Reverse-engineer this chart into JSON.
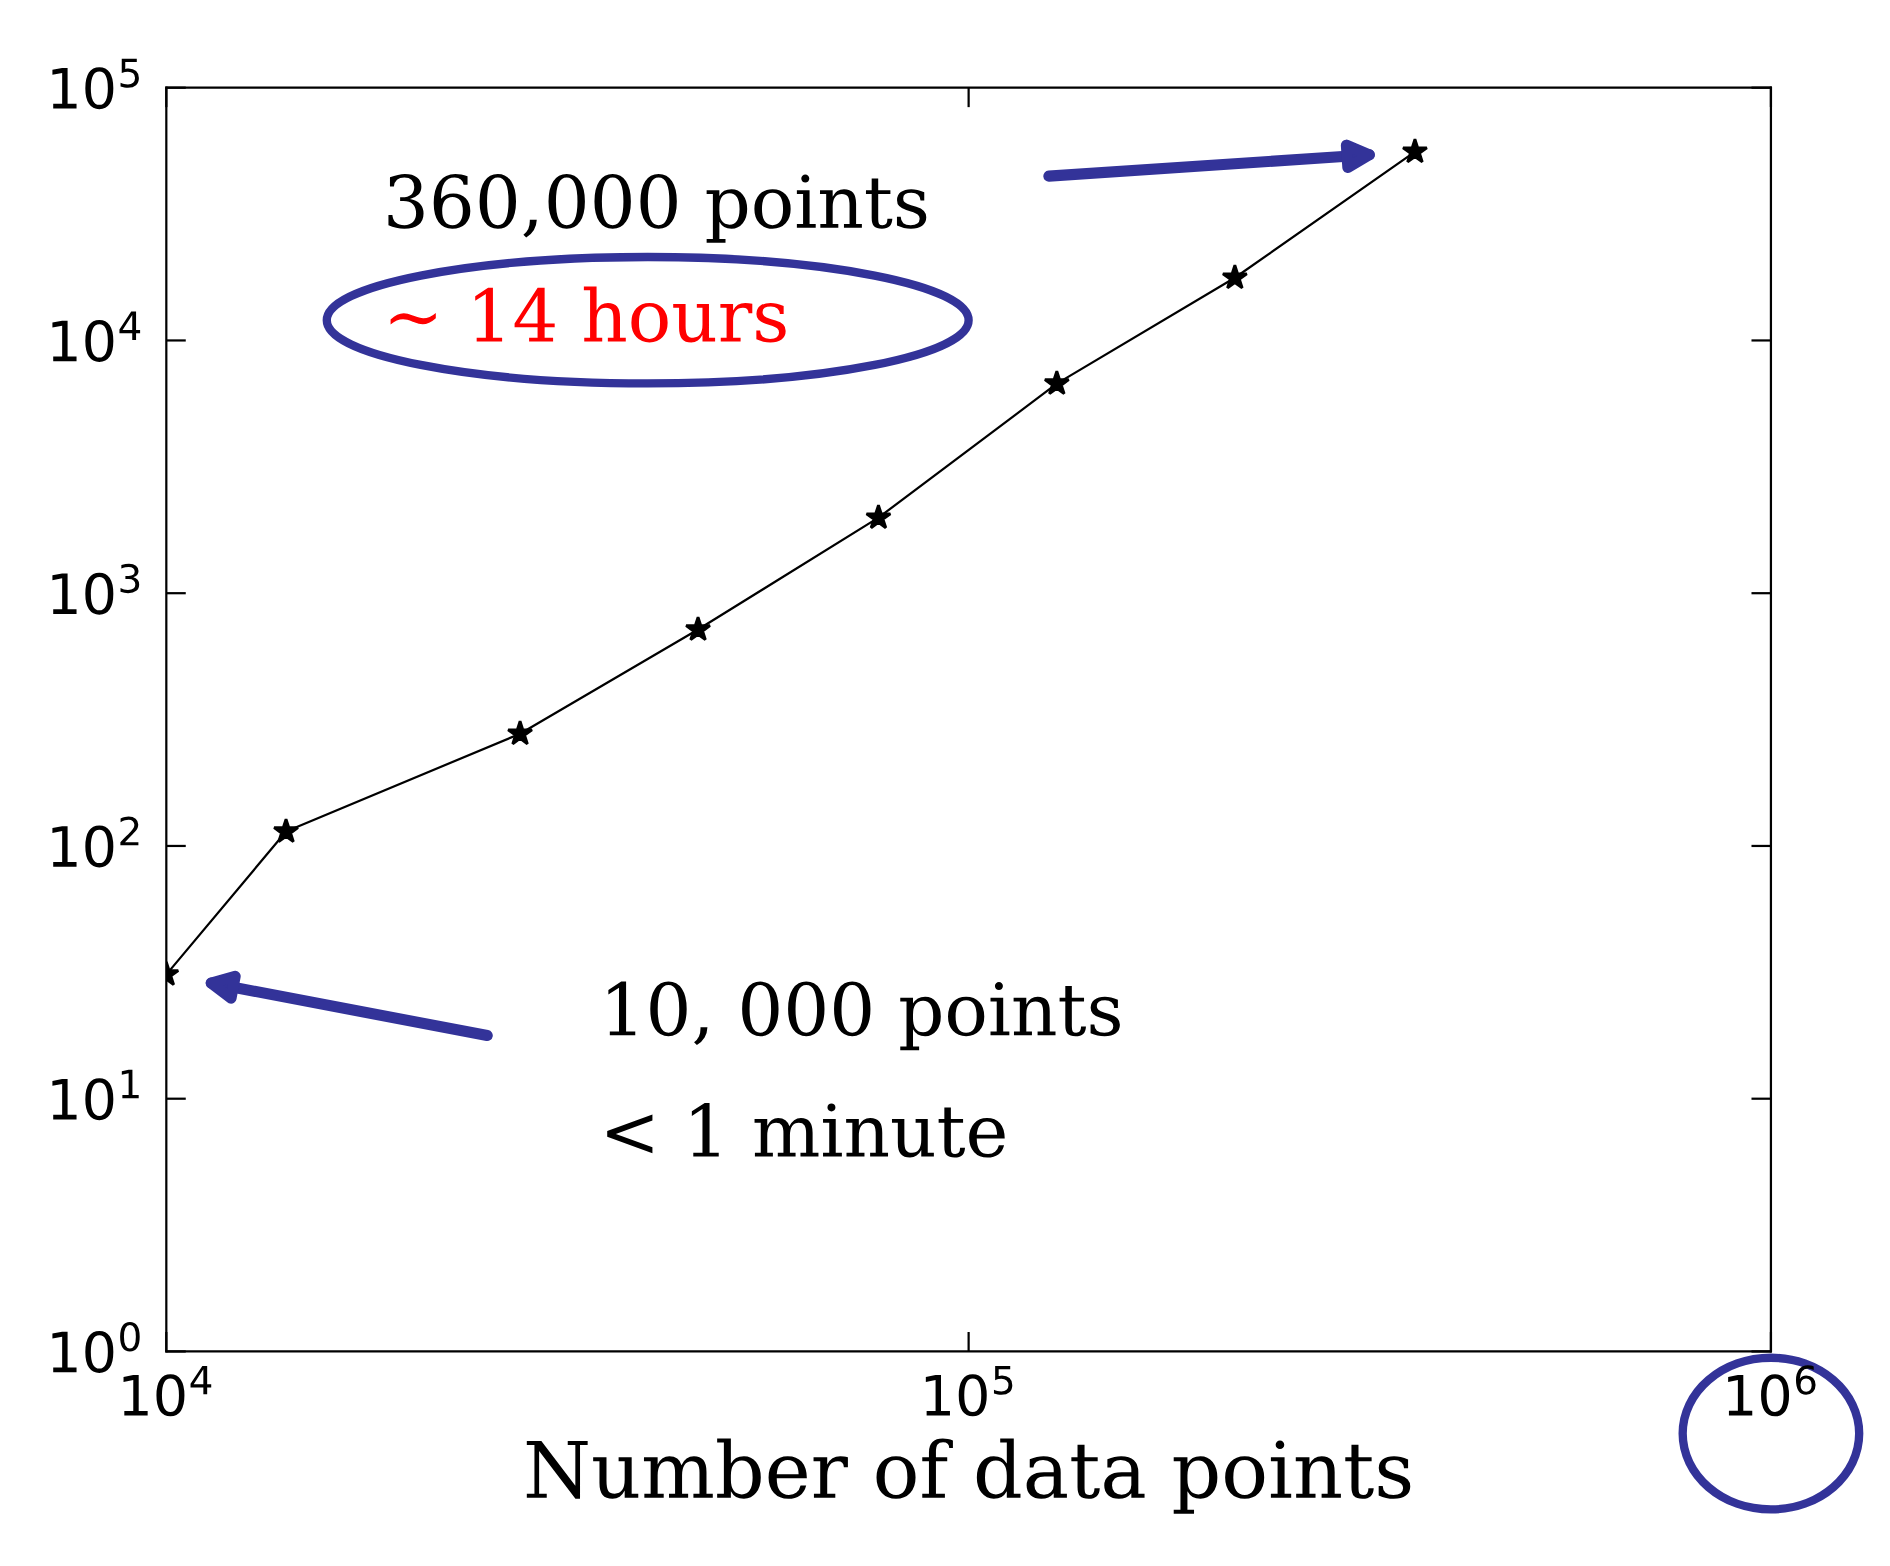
{
  "chart_data": {
    "type": "line",
    "xlabel": "Number of data points",
    "log": "xy",
    "x": [
      10000,
      14100,
      27600,
      46000,
      77200,
      128800,
      214700,
      360000
    ],
    "series": [
      {
        "color": "#000000",
        "values": [
          31,
          114,
          278,
          718,
          1990,
          6750,
          17700,
          55800
        ]
      }
    ],
    "marker": "star",
    "line_style": "solid",
    "xlim": [
      10000,
      1000000
    ],
    "ylim": [
      1,
      100000
    ],
    "xticks": [
      {
        "value": 10000,
        "label": "10$^{4}$"
      },
      {
        "value": 100000,
        "label": "10$^{5}$"
      },
      {
        "value": 1000000,
        "label": "10$^{6}$"
      }
    ],
    "yticks": [
      {
        "value": 1,
        "label": "10$^{0}$"
      },
      {
        "value": 10,
        "label": "10$^{1}$"
      },
      {
        "value": 100,
        "label": "10$^{2}$"
      },
      {
        "value": 1000,
        "label": "10$^{3}$"
      },
      {
        "value": 10000,
        "label": "10$^{4}$"
      },
      {
        "value": 100000,
        "label": "10$^{5}$"
      }
    ],
    "grid": false,
    "legend": false,
    "annotations": [
      "360,000 points",
      "∼ 14 hours",
      "10, 000 points",
      "< 1 minute"
    ]
  }
}
